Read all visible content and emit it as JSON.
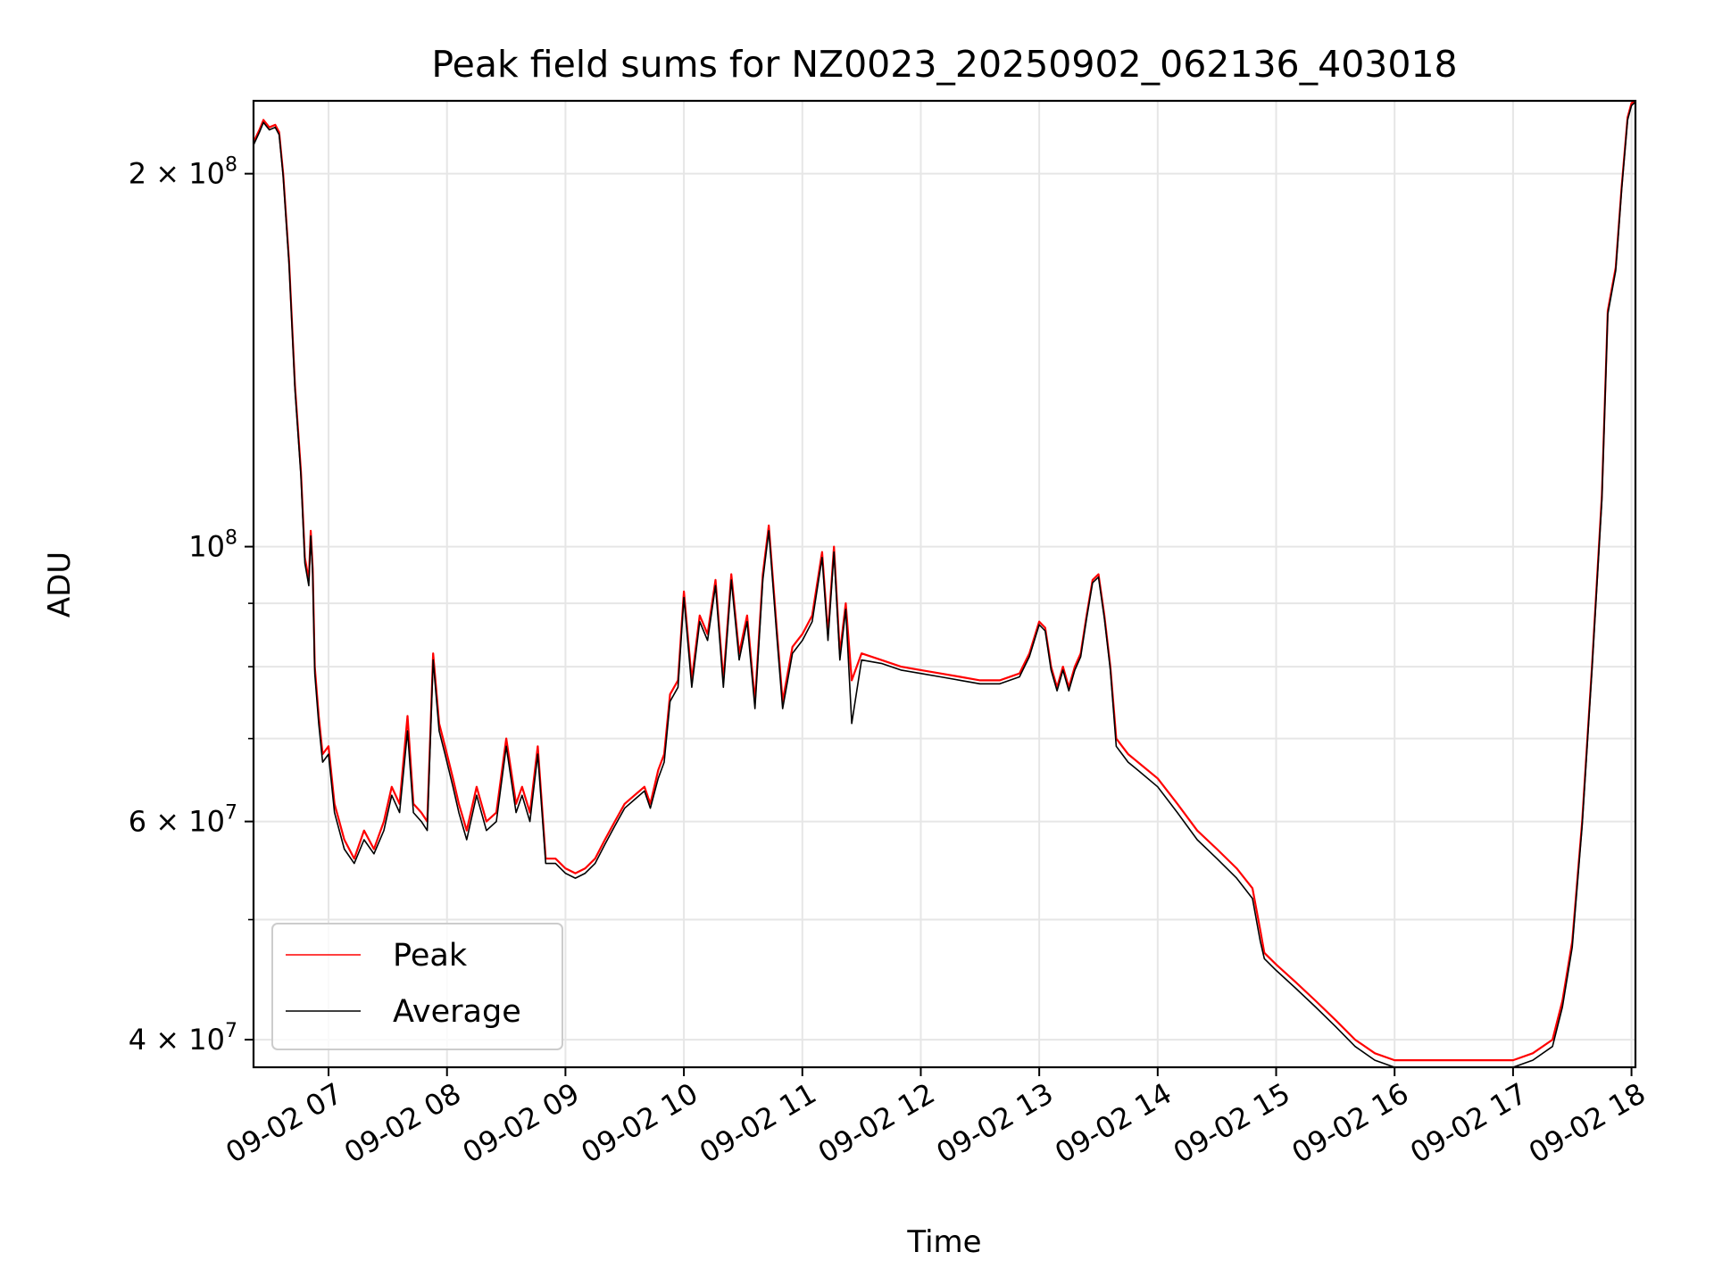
{
  "chart_data": {
    "type": "line",
    "title": "Peak field sums for NZ0023_20250902_062136_403018",
    "xlabel": "Time",
    "ylabel": "ADU",
    "xscale": "time",
    "yscale": "log",
    "xlim": [
      "09-02 06:22",
      "09-02 18:02"
    ],
    "ylim": [
      38000000,
      229000000
    ],
    "x_ticks": [
      {
        "value": "09-02 07:00",
        "label": "09-02 07"
      },
      {
        "value": "09-02 08:00",
        "label": "09-02 08"
      },
      {
        "value": "09-02 09:00",
        "label": "09-02 09"
      },
      {
        "value": "09-02 10:00",
        "label": "09-02 10"
      },
      {
        "value": "09-02 11:00",
        "label": "09-02 11"
      },
      {
        "value": "09-02 12:00",
        "label": "09-02 12"
      },
      {
        "value": "09-02 13:00",
        "label": "09-02 13"
      },
      {
        "value": "09-02 14:00",
        "label": "09-02 14"
      },
      {
        "value": "09-02 15:00",
        "label": "09-02 15"
      },
      {
        "value": "09-02 16:00",
        "label": "09-02 16"
      },
      {
        "value": "09-02 17:00",
        "label": "09-02 17"
      },
      {
        "value": "09-02 18:00",
        "label": "09-02 18"
      }
    ],
    "y_major_ticks": [
      {
        "value": 40000000,
        "mantissa": "4",
        "exponent": "7"
      },
      {
        "value": 60000000,
        "mantissa": "6",
        "exponent": "7"
      },
      {
        "value": 100000000,
        "mantissa": "",
        "exponent": "8"
      },
      {
        "value": 200000000,
        "mantissa": "2",
        "exponent": "8"
      }
    ],
    "y_minor_ticks": [
      50000000,
      70000000,
      80000000,
      90000000
    ],
    "grid": true,
    "legend_position": "lower-left",
    "series": [
      {
        "name": "Peak",
        "color": "#ff0000",
        "x": [
          "09-02 06:22",
          "09-02 06:25",
          "09-02 06:27",
          "09-02 06:30",
          "09-02 06:33",
          "09-02 06:35",
          "09-02 06:37",
          "09-02 06:40",
          "09-02 06:43",
          "09-02 06:46",
          "09-02 06:48",
          "09-02 06:50",
          "09-02 06:51",
          "09-02 06:52",
          "09-02 06:53",
          "09-02 06:55",
          "09-02 06:57",
          "09-02 07:00",
          "09-02 07:03",
          "09-02 07:08",
          "09-02 07:13",
          "09-02 07:18",
          "09-02 07:23",
          "09-02 07:28",
          "09-02 07:32",
          "09-02 07:36",
          "09-02 07:40",
          "09-02 07:43",
          "09-02 07:47",
          "09-02 07:50",
          "09-02 07:53",
          "09-02 07:56",
          "09-02 07:59",
          "09-02 08:03",
          "09-02 08:06",
          "09-02 08:10",
          "09-02 08:15",
          "09-02 08:20",
          "09-02 08:25",
          "09-02 08:30",
          "09-02 08:35",
          "09-02 08:38",
          "09-02 08:42",
          "09-02 08:46",
          "09-02 08:50",
          "09-02 08:55",
          "09-02 09:00",
          "09-02 09:05",
          "09-02 09:10",
          "09-02 09:15",
          "09-02 09:20",
          "09-02 09:25",
          "09-02 09:30",
          "09-02 09:35",
          "09-02 09:40",
          "09-02 09:43",
          "09-02 09:47",
          "09-02 09:50",
          "09-02 09:53",
          "09-02 09:57",
          "09-02 10:00",
          "09-02 10:04",
          "09-02 10:08",
          "09-02 10:12",
          "09-02 10:16",
          "09-02 10:20",
          "09-02 10:24",
          "09-02 10:28",
          "09-02 10:32",
          "09-02 10:36",
          "09-02 10:40",
          "09-02 10:43",
          "09-02 10:47",
          "09-02 10:50",
          "09-02 10:55",
          "09-02 11:00",
          "09-02 11:05",
          "09-02 11:10",
          "09-02 11:13",
          "09-02 11:16",
          "09-02 11:19",
          "09-02 11:22",
          "09-02 11:25",
          "09-02 11:30",
          "09-02 11:40",
          "09-02 11:50",
          "09-02 12:00",
          "09-02 12:10",
          "09-02 12:20",
          "09-02 12:30",
          "09-02 12:40",
          "09-02 12:50",
          "09-02 12:55",
          "09-02 13:00",
          "09-02 13:03",
          "09-02 13:06",
          "09-02 13:09",
          "09-02 13:12",
          "09-02 13:15",
          "09-02 13:18",
          "09-02 13:21",
          "09-02 13:24",
          "09-02 13:27",
          "09-02 13:30",
          "09-02 13:33",
          "09-02 13:36",
          "09-02 13:39",
          "09-02 13:42",
          "09-02 13:45",
          "09-02 13:50",
          "09-02 14:00",
          "09-02 14:10",
          "09-02 14:20",
          "09-02 14:30",
          "09-02 14:40",
          "09-02 14:48",
          "09-02 14:52",
          "09-02 14:54",
          "09-02 15:00",
          "09-02 15:10",
          "09-02 15:20",
          "09-02 15:30",
          "09-02 15:40",
          "09-02 15:50",
          "09-02 16:00",
          "09-02 16:10",
          "09-02 16:20",
          "09-02 16:30",
          "09-02 16:40",
          "09-02 16:50",
          "09-02 17:00",
          "09-02 17:10",
          "09-02 17:20",
          "09-02 17:25",
          "09-02 17:30",
          "09-02 17:35",
          "09-02 17:40",
          "09-02 17:45",
          "09-02 17:48",
          "09-02 17:52",
          "09-02 17:55",
          "09-02 17:58",
          "09-02 18:00",
          "09-02 18:02"
        ],
        "y": [
          212000000,
          217000000,
          221000000,
          218000000,
          219000000,
          216000000,
          200000000,
          170000000,
          135000000,
          115000000,
          98000000,
          94000000,
          103000000,
          96000000,
          80000000,
          73000000,
          68000000,
          69000000,
          62000000,
          58000000,
          56000000,
          59000000,
          57000000,
          60000000,
          64000000,
          62000000,
          73000000,
          62000000,
          61000000,
          60000000,
          82000000,
          72000000,
          69000000,
          65000000,
          62000000,
          59000000,
          64000000,
          60000000,
          61000000,
          70000000,
          62000000,
          64000000,
          61000000,
          69000000,
          56000000,
          56000000,
          55000000,
          54500000,
          55000000,
          56000000,
          58000000,
          60000000,
          62000000,
          63000000,
          64000000,
          62000000,
          66000000,
          68000000,
          76000000,
          78000000,
          92000000,
          78000000,
          88000000,
          85000000,
          94000000,
          78000000,
          95000000,
          82000000,
          88000000,
          75000000,
          95000000,
          104000000,
          86000000,
          75000000,
          83000000,
          85000000,
          88000000,
          99000000,
          85000000,
          100000000,
          82000000,
          90000000,
          78000000,
          82000000,
          81000000,
          80000000,
          79500000,
          79000000,
          78500000,
          78000000,
          78000000,
          79000000,
          82000000,
          87000000,
          86000000,
          80000000,
          77000000,
          80000000,
          77000000,
          80000000,
          82000000,
          88000000,
          94000000,
          95000000,
          88000000,
          80000000,
          70000000,
          69000000,
          68000000,
          67000000,
          65000000,
          62000000,
          59000000,
          57000000,
          55000000,
          53000000,
          49000000,
          47000000,
          46000000,
          44500000,
          43000000,
          41500000,
          40000000,
          39000000,
          38500000,
          38500000,
          38500000,
          38500000,
          38500000,
          38500000,
          38500000,
          39000000,
          40000000,
          43000000,
          48000000,
          60000000,
          80000000,
          110000000,
          155000000,
          168000000,
          195000000,
          222000000,
          228000000,
          229000000
        ]
      },
      {
        "name": "Average",
        "color": "#000000",
        "x": [
          "09-02 06:22",
          "09-02 06:25",
          "09-02 06:27",
          "09-02 06:30",
          "09-02 06:33",
          "09-02 06:35",
          "09-02 06:37",
          "09-02 06:40",
          "09-02 06:43",
          "09-02 06:46",
          "09-02 06:48",
          "09-02 06:50",
          "09-02 06:51",
          "09-02 06:52",
          "09-02 06:53",
          "09-02 06:55",
          "09-02 06:57",
          "09-02 07:00",
          "09-02 07:03",
          "09-02 07:08",
          "09-02 07:13",
          "09-02 07:18",
          "09-02 07:23",
          "09-02 07:28",
          "09-02 07:32",
          "09-02 07:36",
          "09-02 07:40",
          "09-02 07:43",
          "09-02 07:47",
          "09-02 07:50",
          "09-02 07:53",
          "09-02 07:56",
          "09-02 07:59",
          "09-02 08:03",
          "09-02 08:06",
          "09-02 08:10",
          "09-02 08:15",
          "09-02 08:20",
          "09-02 08:25",
          "09-02 08:30",
          "09-02 08:35",
          "09-02 08:38",
          "09-02 08:42",
          "09-02 08:46",
          "09-02 08:50",
          "09-02 08:55",
          "09-02 09:00",
          "09-02 09:05",
          "09-02 09:10",
          "09-02 09:15",
          "09-02 09:20",
          "09-02 09:25",
          "09-02 09:30",
          "09-02 09:35",
          "09-02 09:40",
          "09-02 09:43",
          "09-02 09:47",
          "09-02 09:50",
          "09-02 09:53",
          "09-02 09:57",
          "09-02 10:00",
          "09-02 10:04",
          "09-02 10:08",
          "09-02 10:12",
          "09-02 10:16",
          "09-02 10:20",
          "09-02 10:24",
          "09-02 10:28",
          "09-02 10:32",
          "09-02 10:36",
          "09-02 10:40",
          "09-02 10:43",
          "09-02 10:47",
          "09-02 10:50",
          "09-02 10:55",
          "09-02 11:00",
          "09-02 11:05",
          "09-02 11:10",
          "09-02 11:13",
          "09-02 11:16",
          "09-02 11:19",
          "09-02 11:22",
          "09-02 11:25",
          "09-02 11:30",
          "09-02 11:40",
          "09-02 11:50",
          "09-02 12:00",
          "09-02 12:10",
          "09-02 12:20",
          "09-02 12:30",
          "09-02 12:40",
          "09-02 12:50",
          "09-02 12:55",
          "09-02 13:00",
          "09-02 13:03",
          "09-02 13:06",
          "09-02 13:09",
          "09-02 13:12",
          "09-02 13:15",
          "09-02 13:18",
          "09-02 13:21",
          "09-02 13:24",
          "09-02 13:27",
          "09-02 13:30",
          "09-02 13:33",
          "09-02 13:36",
          "09-02 13:39",
          "09-02 13:42",
          "09-02 13:45",
          "09-02 13:50",
          "09-02 14:00",
          "09-02 14:10",
          "09-02 14:20",
          "09-02 14:30",
          "09-02 14:40",
          "09-02 14:48",
          "09-02 14:52",
          "09-02 14:54",
          "09-02 15:00",
          "09-02 15:10",
          "09-02 15:20",
          "09-02 15:30",
          "09-02 15:40",
          "09-02 15:50",
          "09-02 16:00",
          "09-02 16:10",
          "09-02 16:20",
          "09-02 16:30",
          "09-02 16:40",
          "09-02 16:50",
          "09-02 17:00",
          "09-02 17:10",
          "09-02 17:20",
          "09-02 17:25",
          "09-02 17:30",
          "09-02 17:35",
          "09-02 17:40",
          "09-02 17:45",
          "09-02 17:48",
          "09-02 17:52",
          "09-02 17:55",
          "09-02 17:58",
          "09-02 18:00",
          "09-02 18:02"
        ],
        "y": [
          211000000,
          216000000,
          220000000,
          217000000,
          218000000,
          215000000,
          199000000,
          169000000,
          134000000,
          114000000,
          97000000,
          93000000,
          102000000,
          95000000,
          79000000,
          72000000,
          67000000,
          68000000,
          61000000,
          57000000,
          55500000,
          58000000,
          56500000,
          59000000,
          63000000,
          61000000,
          71000000,
          61000000,
          60000000,
          59000000,
          81000000,
          71000000,
          68000000,
          64000000,
          61000000,
          58000000,
          63000000,
          59000000,
          60000000,
          69000000,
          61000000,
          63000000,
          60000000,
          68000000,
          55500000,
          55500000,
          54500000,
          54000000,
          54500000,
          55500000,
          57500000,
          59500000,
          61500000,
          62500000,
          63500000,
          61500000,
          65000000,
          67000000,
          75000000,
          77000000,
          91000000,
          77000000,
          87000000,
          84000000,
          93000000,
          77000000,
          94000000,
          81000000,
          87000000,
          74000000,
          94000000,
          103000000,
          85000000,
          74000000,
          82000000,
          84000000,
          87000000,
          98000000,
          84000000,
          99000000,
          81000000,
          89000000,
          72000000,
          81000000,
          80500000,
          79500000,
          79000000,
          78500000,
          78000000,
          77500000,
          77500000,
          78500000,
          81500000,
          86500000,
          85500000,
          79500000,
          76500000,
          79500000,
          76500000,
          79500000,
          81500000,
          87500000,
          93500000,
          94500000,
          87500000,
          79500000,
          69000000,
          68000000,
          67000000,
          66000000,
          64000000,
          61000000,
          58000000,
          56000000,
          54000000,
          52000000,
          48000000,
          46500000,
          45500000,
          44000000,
          42500000,
          41000000,
          39500000,
          38500000,
          38000000,
          38000000,
          38000000,
          38000000,
          38000000,
          38000000,
          38000000,
          38500000,
          39500000,
          42500000,
          47500000,
          59500000,
          79500000,
          109000000,
          154000000,
          167000000,
          194000000,
          221000000,
          227000000,
          228500000
        ]
      }
    ]
  }
}
